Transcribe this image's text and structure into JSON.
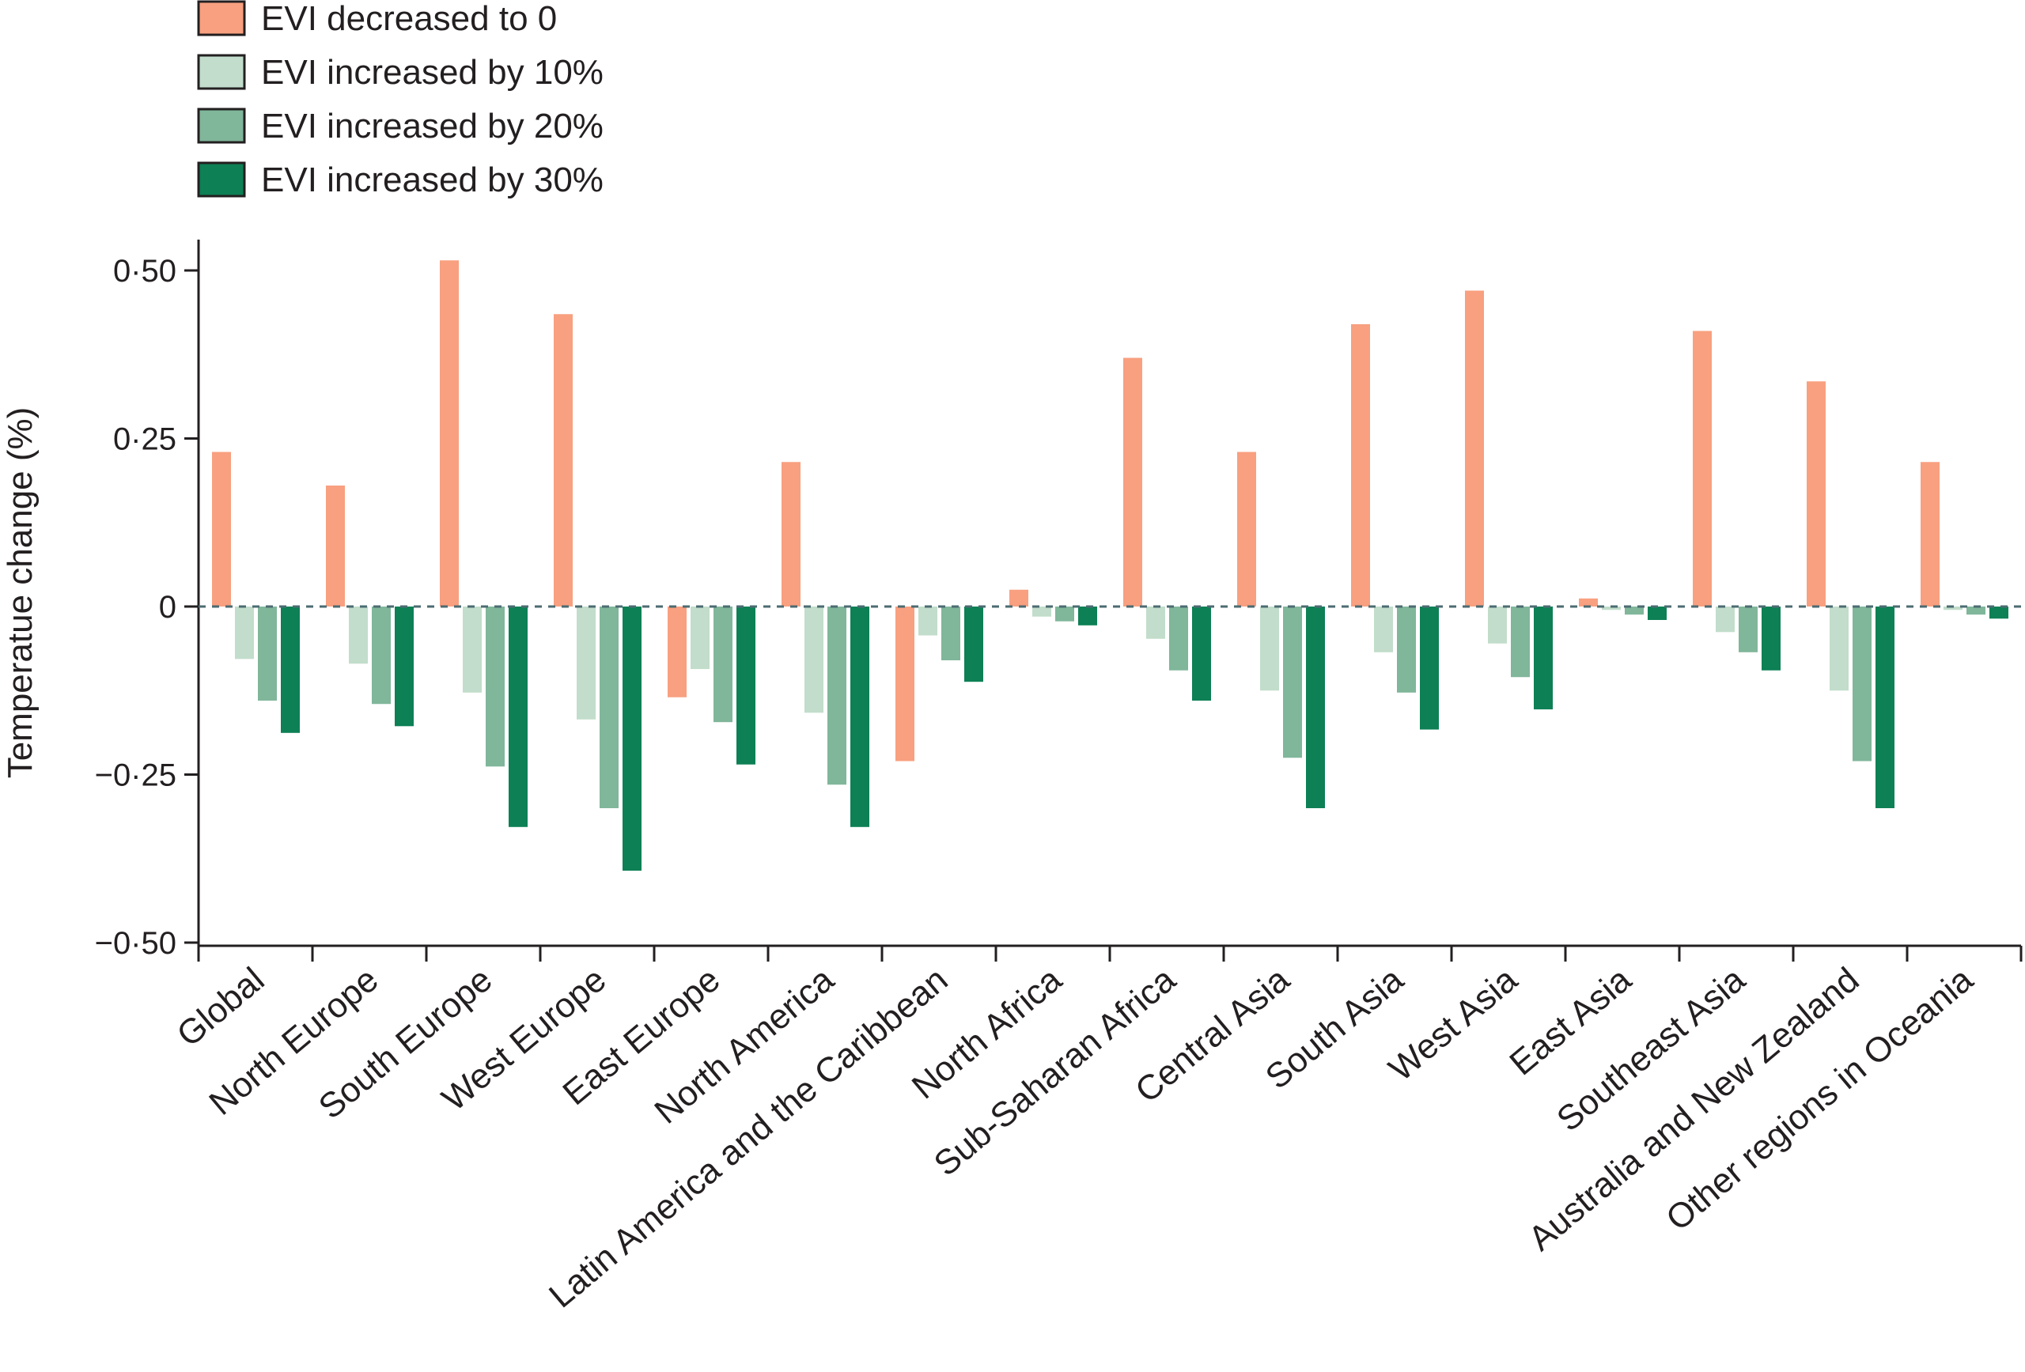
{
  "chart_data": {
    "type": "bar",
    "title": "",
    "xlabel": "",
    "ylabel": "Temperatue change (%)",
    "ylim": [
      -0.5,
      0.55
    ],
    "yticks": [
      {
        "value": 0.5,
        "label": "0·50"
      },
      {
        "value": 0.25,
        "label": "0·25"
      },
      {
        "value": 0,
        "label": "0"
      },
      {
        "value": -0.25,
        "label": "−0·25"
      },
      {
        "value": -0.5,
        "label": "−0·50"
      }
    ],
    "zero_line": "dashed",
    "legend_position": "top-left",
    "categories": [
      "Global",
      "North Europe",
      "South Europe",
      "West Europe",
      "East Europe",
      "North America",
      "Latin America and the Caribbean",
      "North Africa",
      "Sub-Saharan Africa",
      "Central Asia",
      "South Asia",
      "West Asia",
      "East Asia",
      "Southeast Asia",
      "Australia and New Zealand",
      "Other regions in Oceania"
    ],
    "series": [
      {
        "name": "EVI decreased to 0",
        "color": "#f8a080",
        "values": [
          0.23,
          0.18,
          0.515,
          0.435,
          -0.135,
          0.215,
          -0.23,
          0.025,
          0.37,
          0.23,
          0.42,
          0.47,
          0.012,
          0.41,
          0.335,
          0.215
        ]
      },
      {
        "name": "EVI increased by 10%",
        "color": "#c2ddcb",
        "values": [
          -0.078,
          -0.085,
          -0.128,
          -0.168,
          -0.093,
          -0.158,
          -0.043,
          -0.015,
          -0.048,
          -0.125,
          -0.068,
          -0.055,
          -0.005,
          -0.038,
          -0.125,
          -0.005
        ]
      },
      {
        "name": "EVI increased by 20%",
        "color": "#80b69a",
        "values": [
          -0.14,
          -0.145,
          -0.238,
          -0.3,
          -0.172,
          -0.265,
          -0.08,
          -0.022,
          -0.095,
          -0.225,
          -0.128,
          -0.105,
          -0.012,
          -0.068,
          -0.23,
          -0.012
        ]
      },
      {
        "name": "EVI increased by 30%",
        "color": "#0d8055",
        "values": [
          -0.188,
          -0.178,
          -0.328,
          -0.393,
          -0.235,
          -0.328,
          -0.112,
          -0.028,
          -0.14,
          -0.3,
          -0.183,
          -0.153,
          -0.02,
          -0.095,
          -0.3,
          -0.018
        ]
      }
    ]
  },
  "colors": {
    "axis": "#231f20",
    "zero_line": "#4c6b72",
    "bar_outline": "#231f20"
  }
}
